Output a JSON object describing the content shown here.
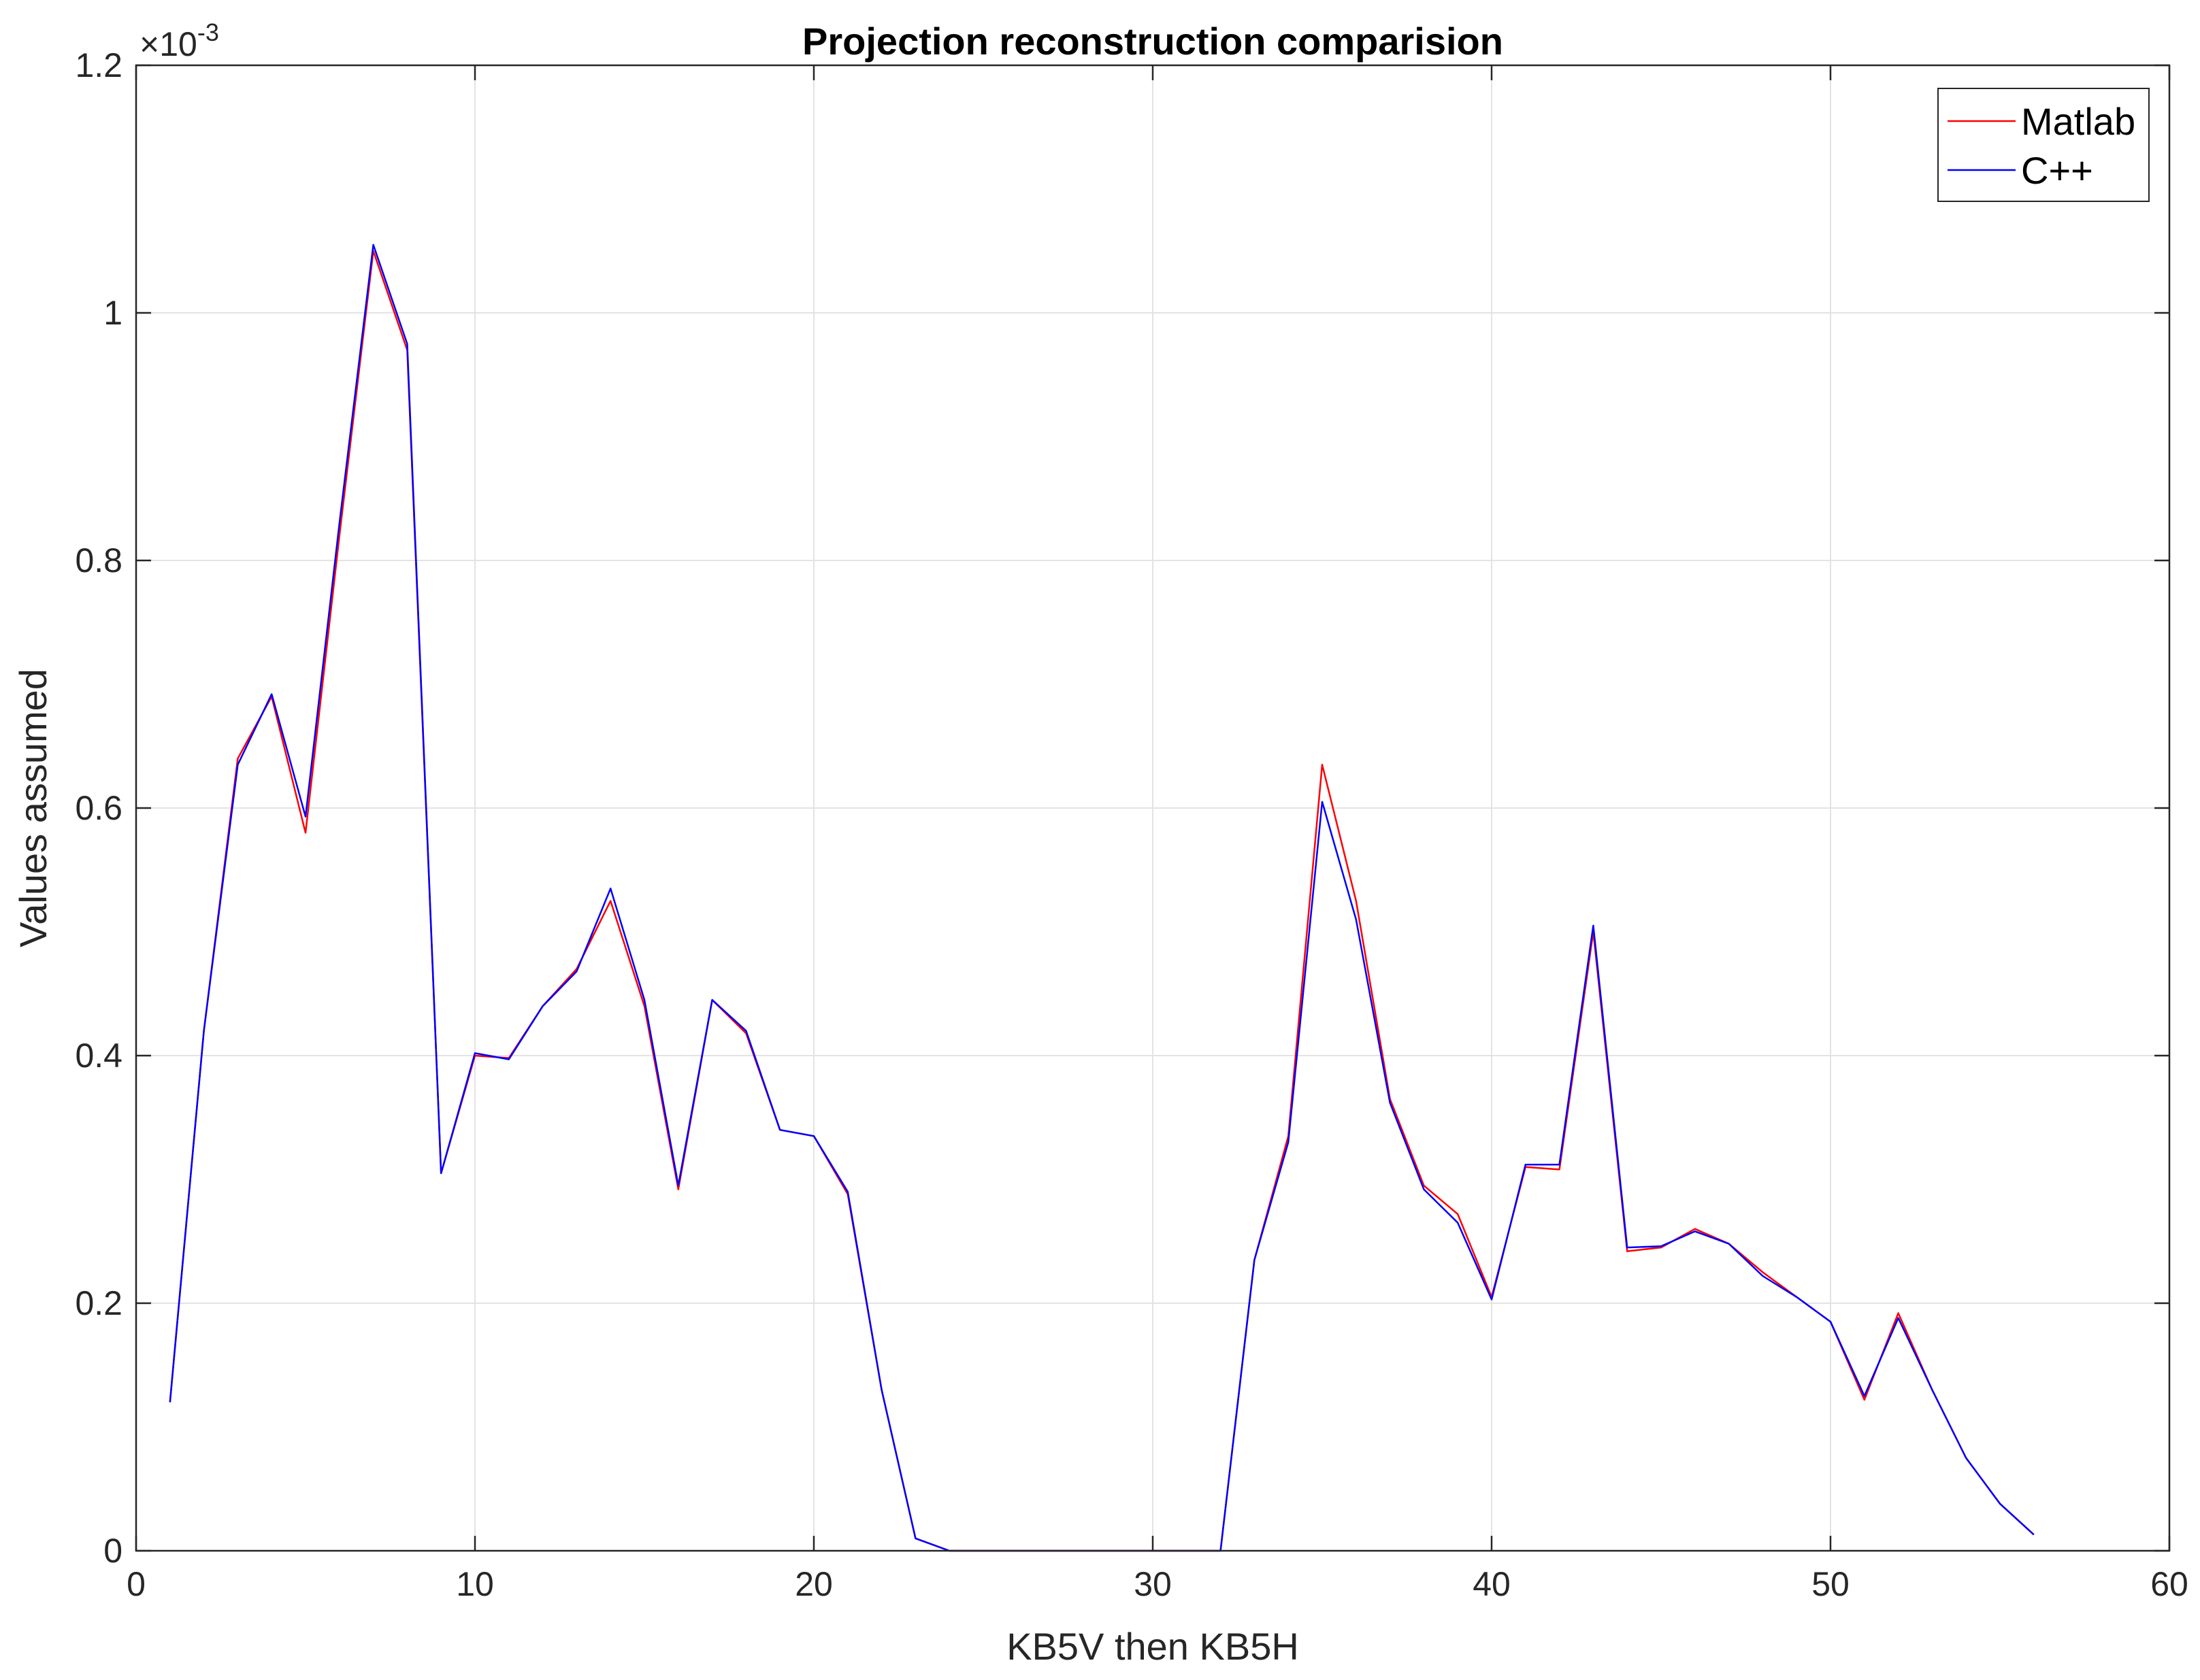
{
  "chart_data": {
    "type": "line",
    "title": "Projection reconstruction comparision",
    "xlabel": "KB5V then KB5H",
    "ylabel": "Values assumed",
    "xlim": [
      0,
      60
    ],
    "ylim": [
      0,
      0.0012
    ],
    "xticks": [
      0,
      10,
      20,
      30,
      40,
      50,
      60
    ],
    "xtick_labels": [
      "0",
      "10",
      "20",
      "30",
      "40",
      "50",
      "60"
    ],
    "yticks": [
      0,
      0.0002,
      0.0004,
      0.0006,
      0.0008,
      0.001,
      0.0012
    ],
    "ytick_labels": [
      "0",
      "0.2",
      "0.4",
      "0.6",
      "0.8",
      "1",
      "1.2"
    ],
    "y_exponent": {
      "base": "10",
      "power": "-3"
    },
    "grid": true,
    "legend_position": "top-right",
    "x": [
      1,
      2,
      3,
      4,
      5,
      6,
      7,
      8,
      9,
      10,
      11,
      12,
      13,
      14,
      15,
      16,
      17,
      18,
      19,
      20,
      21,
      22,
      23,
      24,
      25,
      26,
      27,
      28,
      29,
      30,
      31,
      32,
      33,
      34,
      35,
      36,
      37,
      38,
      39,
      40,
      41,
      42,
      43,
      44,
      45,
      46,
      47,
      48,
      49,
      50,
      51,
      52,
      53,
      54,
      55,
      56
    ],
    "series": [
      {
        "name": "Matlab",
        "color": "#ff0000",
        "values": [
          0.00012,
          0.00042,
          0.00064,
          0.00069,
          0.00058,
          0.00082,
          0.00105,
          0.00097,
          0.000305,
          0.0004,
          0.000398,
          0.00044,
          0.00047,
          0.000525,
          0.00044,
          0.000292,
          0.000445,
          0.000418,
          0.00034,
          0.000335,
          0.000288,
          0.00013,
          1e-05,
          0.0,
          0.0,
          0.0,
          0.0,
          0.0,
          0.0,
          0.0,
          0.0,
          0.0,
          0.000235,
          0.000335,
          0.000635,
          0.000525,
          0.000365,
          0.000295,
          0.000272,
          0.000205,
          0.00031,
          0.000308,
          0.0005,
          0.000242,
          0.000245,
          0.00026,
          0.000248,
          0.000225,
          0.000205,
          0.000185,
          0.000122,
          0.000192,
          0.00013,
          7.5e-05,
          3.8e-05,
          1.3e-05
        ]
      },
      {
        "name": "C++",
        "color": "#0000ff",
        "values": [
          0.00012,
          0.00042,
          0.000635,
          0.000692,
          0.000593,
          0.00083,
          0.001055,
          0.000975,
          0.000305,
          0.000402,
          0.000397,
          0.00044,
          0.000468,
          0.000535,
          0.000445,
          0.000295,
          0.000445,
          0.00042,
          0.00034,
          0.000335,
          0.00029,
          0.00013,
          1e-05,
          0.0,
          0.0,
          0.0,
          0.0,
          0.0,
          0.0,
          0.0,
          0.0,
          0.0,
          0.000235,
          0.00033,
          0.000605,
          0.00051,
          0.000362,
          0.000292,
          0.000265,
          0.000203,
          0.000312,
          0.000312,
          0.000505,
          0.000245,
          0.000246,
          0.000258,
          0.000248,
          0.000222,
          0.000205,
          0.000185,
          0.000125,
          0.000188,
          0.00013,
          7.5e-05,
          3.8e-05,
          1.3e-05
        ]
      }
    ]
  }
}
